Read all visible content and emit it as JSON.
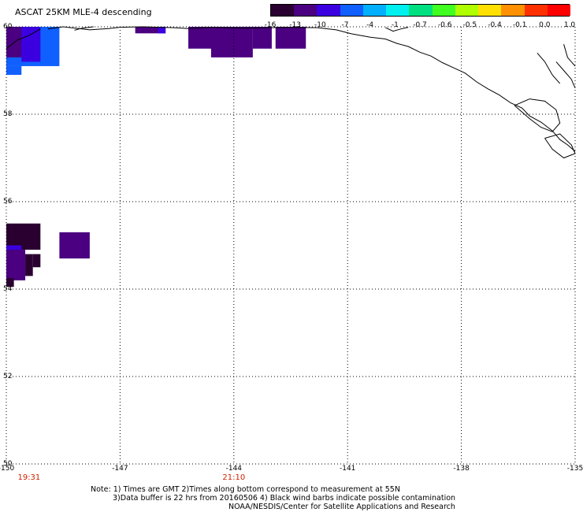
{
  "title": "ASCAT 25KM MLE-4 descending",
  "colorbar": {
    "labels": [
      "-16",
      "-13",
      "-10",
      "-7",
      "-4",
      "-1",
      "-0.7",
      "-0.6",
      "-0.5",
      "-0.4",
      "-0.1",
      "0.0",
      "1.0"
    ],
    "colors": [
      "#2a0030",
      "#4a0080",
      "#3a00e0",
      "#1060ff",
      "#00b0ff",
      "#00f0f0",
      "#00e080",
      "#40ff20",
      "#b0ff00",
      "#ffe000",
      "#ff9000",
      "#ff3000",
      "#ff0000"
    ]
  },
  "lat_labels": [
    "60",
    "58",
    "56",
    "54",
    "52",
    "50"
  ],
  "lon_labels": [
    "-150",
    "-147",
    "-144",
    "-141",
    "-138",
    "-135"
  ],
  "time_labels": [
    {
      "text": "19:31",
      "lon": -149.4
    },
    {
      "text": "21:10",
      "lon": -144.0
    }
  ],
  "notes": [
    "Note: 1) Times are GMT 2)Times along bottom correspond to measurement at 55N",
    "3)Data buffer is 22 hrs from 20160506 4) Black wind barbs indicate possible contamination",
    "NOAA/NESDIS/Center for Satellite Applications and Research"
  ],
  "map_extent": {
    "lon_min": -150,
    "lon_max": -135,
    "lat_min": 50,
    "lat_max": 60
  },
  "data_cells": [
    {
      "lon0": -150.0,
      "lon1": -148.6,
      "lat0": 59.1,
      "lat1": 60.0,
      "color": "#1060ff"
    },
    {
      "lon0": -150.0,
      "lon1": -149.6,
      "lat0": 58.9,
      "lat1": 59.1,
      "color": "#1060ff"
    },
    {
      "lon0": -150.0,
      "lon1": -149.5,
      "lat0": 59.3,
      "lat1": 60.0,
      "color": "#4a0080"
    },
    {
      "lon0": -149.6,
      "lon1": -149.1,
      "lat0": 59.2,
      "lat1": 60.0,
      "color": "#3a00e0"
    },
    {
      "lon0": -146.6,
      "lon1": -145.8,
      "lat0": 59.85,
      "lat1": 60.0,
      "color": "#4a0080"
    },
    {
      "lon0": -146.0,
      "lon1": -145.8,
      "lat0": 59.85,
      "lat1": 60.0,
      "color": "#3a00e0"
    },
    {
      "lon0": -145.2,
      "lon1": -144.3,
      "lat0": 59.5,
      "lat1": 60.0,
      "color": "#4a0080"
    },
    {
      "lon0": -144.6,
      "lon1": -143.5,
      "lat0": 59.3,
      "lat1": 60.0,
      "color": "#4a0080"
    },
    {
      "lon0": -143.5,
      "lon1": -143.0,
      "lat0": 59.5,
      "lat1": 60.0,
      "color": "#4a0080"
    },
    {
      "lon0": -142.9,
      "lon1": -142.1,
      "lat0": 59.5,
      "lat1": 60.0,
      "color": "#4a0080"
    },
    {
      "lon0": -150.0,
      "lon1": -149.1,
      "lat0": 54.9,
      "lat1": 55.5,
      "color": "#2a0030"
    },
    {
      "lon0": -148.6,
      "lon1": -147.8,
      "lat0": 54.7,
      "lat1": 55.3,
      "color": "#4a0080"
    },
    {
      "lon0": -150.0,
      "lon1": -149.6,
      "lat0": 54.8,
      "lat1": 55.0,
      "color": "#3a00e0"
    },
    {
      "lon0": -150.0,
      "lon1": -149.5,
      "lat0": 54.2,
      "lat1": 54.9,
      "color": "#4a0080"
    },
    {
      "lon0": -149.5,
      "lon1": -149.3,
      "lat0": 54.3,
      "lat1": 54.8,
      "color": "#2a0030"
    },
    {
      "lon0": -149.3,
      "lon1": -149.1,
      "lat0": 54.5,
      "lat1": 54.8,
      "color": "#2a0030"
    },
    {
      "lon0": -150.0,
      "lon1": -149.8,
      "lat0": 54.05,
      "lat1": 54.25,
      "color": "#2a0030"
    }
  ],
  "colors": {
    "grid": "#000000",
    "coast": "#000000",
    "time_text": "#cc2200"
  }
}
